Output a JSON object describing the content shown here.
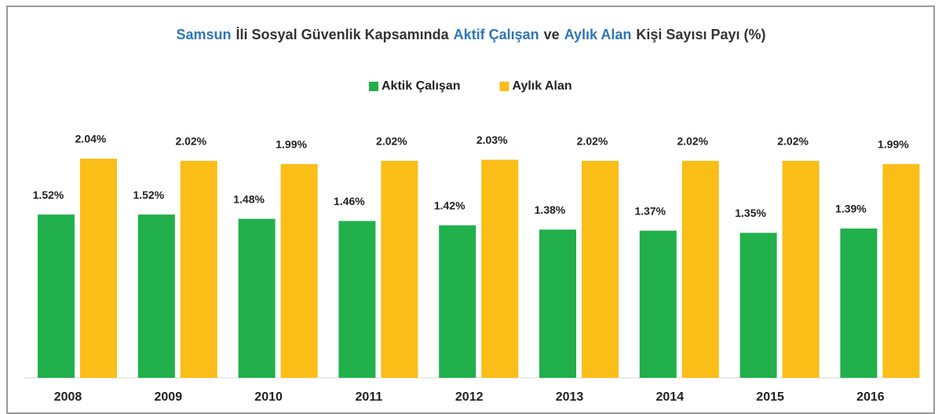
{
  "chart_data": {
    "type": "bar",
    "title": [
      {
        "text": "Samsun",
        "color": "#2e75b6"
      },
      {
        "text": "İli Sosyal Güvenlik Kapsamında",
        "color": "#333333"
      },
      {
        "text": "Aktif Çalışan",
        "color": "#2e75b6"
      },
      {
        "text": "ve",
        "color": "#333333"
      },
      {
        "text": "Aylık Alan",
        "color": "#2e75b6"
      },
      {
        "text": "Kişi Sayısı Payı (%)",
        "color": "#333333"
      }
    ],
    "categories": [
      "2008",
      "2009",
      "2010",
      "2011",
      "2012",
      "2013",
      "2014",
      "2015",
      "2016"
    ],
    "series": [
      {
        "name": "Aktik Çalışan",
        "color": "#21b04b",
        "values": [
          1.52,
          1.52,
          1.48,
          1.46,
          1.42,
          1.38,
          1.37,
          1.35,
          1.39
        ],
        "value_labels": [
          "1.52%",
          "1.52%",
          "1.48%",
          "1.46%",
          "1.42%",
          "1.38%",
          "1.37%",
          "1.35%",
          "1.39%"
        ]
      },
      {
        "name": "Aylık Alan",
        "color": "#fbbd17",
        "values": [
          2.04,
          2.02,
          1.99,
          2.02,
          2.03,
          2.02,
          2.02,
          2.02,
          1.99
        ],
        "value_labels": [
          "2.04%",
          "2.02%",
          "1.99%",
          "2.02%",
          "2.03%",
          "2.02%",
          "2.02%",
          "2.02%",
          "1.99%"
        ]
      }
    ],
    "legend": "top"
  }
}
